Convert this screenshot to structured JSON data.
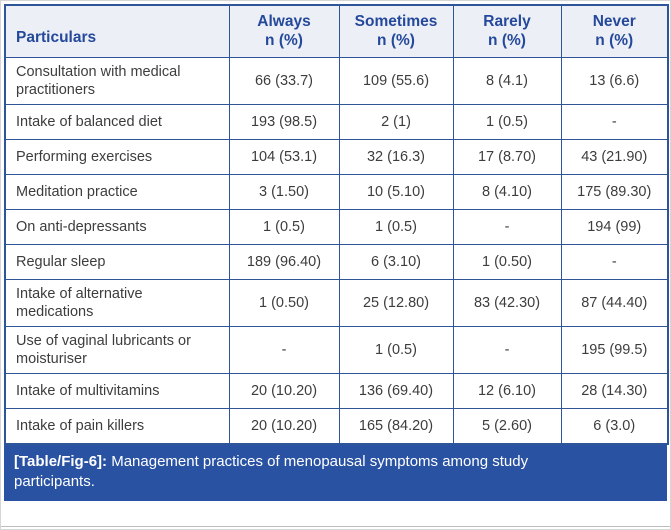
{
  "caption": {
    "tag": "[Table/Fig-6]:",
    "text": " Management practices of menopausal symptoms among study participants."
  },
  "colors": {
    "border": "#2e5597",
    "header_bg": "#edeff7",
    "header_text": "#24499b",
    "caption_bg": "#2a52a2",
    "caption_text": "#ffffff",
    "body_text": "#3d3d3d"
  },
  "table": {
    "columns": [
      {
        "label": "Particulars",
        "sub": ""
      },
      {
        "label": "Always",
        "sub": "n (%)"
      },
      {
        "label": "Sometimes",
        "sub": "n (%)"
      },
      {
        "label": "Rarely",
        "sub": "n (%)"
      },
      {
        "label": "Never",
        "sub": "n (%)"
      }
    ],
    "rows": [
      {
        "cells": [
          "Consultation with medical practitioners",
          "66 (33.7)",
          "109 (55.6)",
          "8 (4.1)",
          "13 (6.6)"
        ]
      },
      {
        "cells": [
          "Intake of balanced diet",
          "193 (98.5)",
          "2 (1)",
          "1 (0.5)",
          "-"
        ]
      },
      {
        "cells": [
          "Performing exercises",
          "104 (53.1)",
          "32 (16.3)",
          "17 (8.70)",
          "43 (21.90)"
        ]
      },
      {
        "cells": [
          "Meditation practice",
          "3 (1.50)",
          "10 (5.10)",
          "8 (4.10)",
          "175 (89.30)"
        ]
      },
      {
        "cells": [
          "On anti-depressants",
          "1 (0.5)",
          "1 (0.5)",
          "-",
          "194 (99)"
        ]
      },
      {
        "cells": [
          "Regular sleep",
          "189 (96.40)",
          "6 (3.10)",
          "1 (0.50)",
          "-"
        ]
      },
      {
        "cells": [
          "Intake of alternative medications",
          "1 (0.50)",
          "25 (12.80)",
          "83 (42.30)",
          "87 (44.40)"
        ]
      },
      {
        "cells": [
          "Use of vaginal lubricants or moisturiser",
          "-",
          "1 (0.5)",
          "-",
          "195 (99.5)"
        ]
      },
      {
        "cells": [
          "Intake of multivitamins",
          "20 (10.20)",
          "136 (69.40)",
          "12 (6.10)",
          "28 (14.30)"
        ]
      },
      {
        "cells": [
          "Intake of pain killers",
          "20 (10.20)",
          "165 (84.20)",
          "5 (2.60)",
          "6 (3.0)"
        ]
      }
    ]
  },
  "chart_data": {
    "type": "table",
    "title": "[Table/Fig-6]: Management practices of menopausal symptoms among study participants.",
    "columns": [
      "Particulars",
      "Always n (%)",
      "Sometimes n (%)",
      "Rarely n (%)",
      "Never n (%)"
    ],
    "rows": [
      [
        "Consultation with medical practitioners",
        "66 (33.7)",
        "109 (55.6)",
        "8 (4.1)",
        "13 (6.6)"
      ],
      [
        "Intake of balanced diet",
        "193 (98.5)",
        "2 (1)",
        "1 (0.5)",
        "-"
      ],
      [
        "Performing exercises",
        "104 (53.1)",
        "32 (16.3)",
        "17 (8.70)",
        "43 (21.90)"
      ],
      [
        "Meditation practice",
        "3 (1.50)",
        "10 (5.10)",
        "8 (4.10)",
        "175 (89.30)"
      ],
      [
        "On anti-depressants",
        "1 (0.5)",
        "1 (0.5)",
        "-",
        "194 (99)"
      ],
      [
        "Regular sleep",
        "189 (96.40)",
        "6 (3.10)",
        "1 (0.50)",
        "-"
      ],
      [
        "Intake of alternative medications",
        "1 (0.50)",
        "25 (12.80)",
        "83 (42.30)",
        "87 (44.40)"
      ],
      [
        "Use of vaginal lubricants or moisturiser",
        "-",
        "1 (0.5)",
        "-",
        "195 (99.5)"
      ],
      [
        "Intake of multivitamins",
        "20 (10.20)",
        "136 (69.40)",
        "12 (6.10)",
        "28 (14.30)"
      ],
      [
        "Intake of pain killers",
        "20 (10.20)",
        "165 (84.20)",
        "5 (2.60)",
        "6 (3.0)"
      ]
    ]
  }
}
